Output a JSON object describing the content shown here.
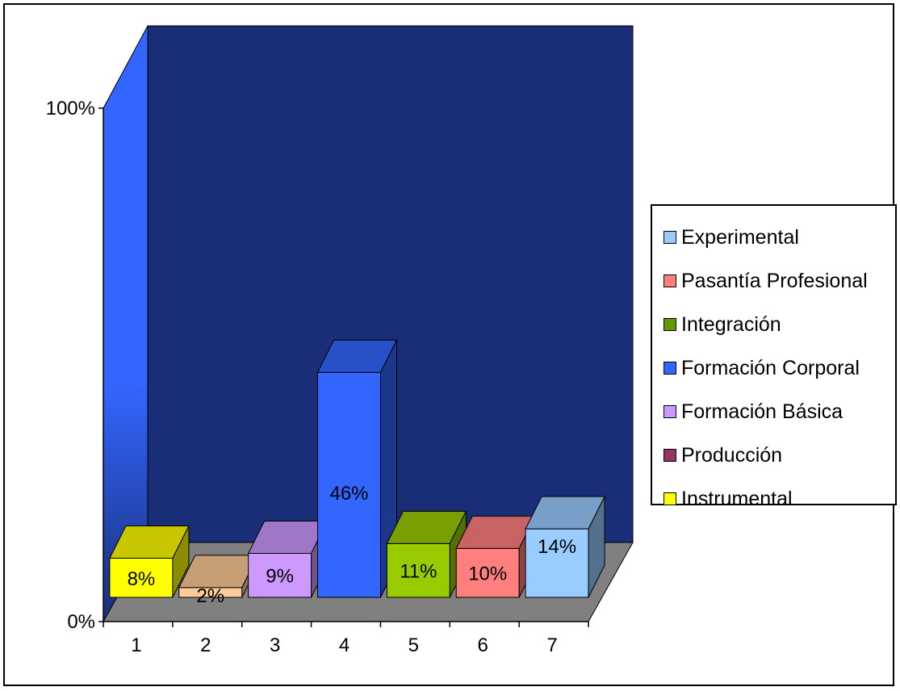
{
  "chart_data": {
    "type": "bar",
    "title": "",
    "xlabel": "",
    "ylabel": "",
    "categories": [
      "1",
      "2",
      "3",
      "4",
      "5",
      "6",
      "7"
    ],
    "values": [
      8,
      2,
      9,
      46,
      11,
      10,
      14
    ],
    "value_labels": [
      "8%",
      "2%",
      "9%",
      "46%",
      "11%",
      "10%",
      "14%"
    ],
    "ylim": [
      0,
      100
    ],
    "yticks": [
      "0%",
      "100%"
    ],
    "bar_colors": [
      "#ffff00",
      "#ffcc99",
      "#cc99ff",
      "#3366ff",
      "#99cc00",
      "#ff7f7f",
      "#99ccff"
    ],
    "legend": {
      "placement": "right",
      "items": [
        {
          "label": "Experimental",
          "color": "#99ccff"
        },
        {
          "label": "Pasantía Profesional",
          "color": "#ff7f7f"
        },
        {
          "label": "Integración",
          "color": "#669900"
        },
        {
          "label": "Formación Corporal",
          "color": "#3366ff"
        },
        {
          "label": "Formación Básica",
          "color": "#cc99ff"
        },
        {
          "label": "Producción",
          "color": "#993366"
        },
        {
          "label": "Instrumental",
          "color": "#ffff00"
        }
      ]
    },
    "back_wall_color": "#1a2e78",
    "side_wall_color": "#3366ff",
    "floor_color": "#808080",
    "grid": false
  }
}
